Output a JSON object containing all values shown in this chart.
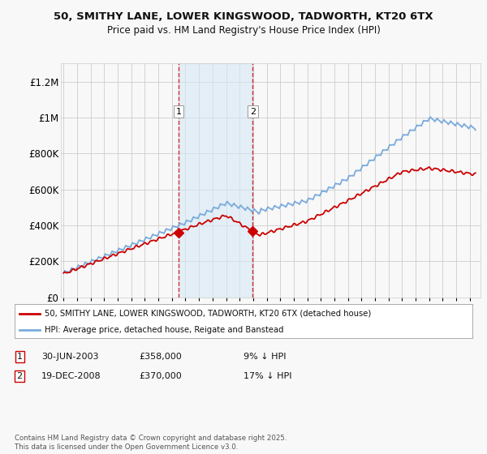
{
  "title_line1": "50, SMITHY LANE, LOWER KINGSWOOD, TADWORTH, KT20 6TX",
  "title_line2": "Price paid vs. HM Land Registry's House Price Index (HPI)",
  "ylabel_ticks": [
    "£0",
    "£200K",
    "£400K",
    "£600K",
    "£800K",
    "£1M",
    "£1.2M"
  ],
  "ytick_values": [
    0,
    200000,
    400000,
    600000,
    800000,
    1000000,
    1200000
  ],
  "ylim": [
    0,
    1300000
  ],
  "xlim_start": 1994.8,
  "xlim_end": 2025.8,
  "sale1_date": 2003.49,
  "sale1_price": 358000,
  "sale1_label": "1",
  "sale2_date": 2008.96,
  "sale2_price": 370000,
  "sale2_label": "2",
  "sale_color": "#cc0000",
  "hpi_color": "#7aabdc",
  "vband_color": "#d6e8f5",
  "vband_alpha": 0.6,
  "grid_color": "#cccccc",
  "bg_color": "#f0f0f0",
  "plot_bg_color": "#f5f5f5",
  "legend1_text": "50, SMITHY LANE, LOWER KINGSWOOD, TADWORTH, KT20 6TX (detached house)",
  "legend2_text": "HPI: Average price, detached house, Reigate and Banstead",
  "footer": "Contains HM Land Registry data © Crown copyright and database right 2025.\nThis data is licensed under the Open Government Licence v3.0.",
  "sale1_ann_date": "30-JUN-2003",
  "sale1_ann_price": "£358,000",
  "sale1_ann_hpi": "9% ↓ HPI",
  "sale2_ann_date": "19-DEC-2008",
  "sale2_ann_price": "£370,000",
  "sale2_ann_hpi": "17% ↓ HPI"
}
